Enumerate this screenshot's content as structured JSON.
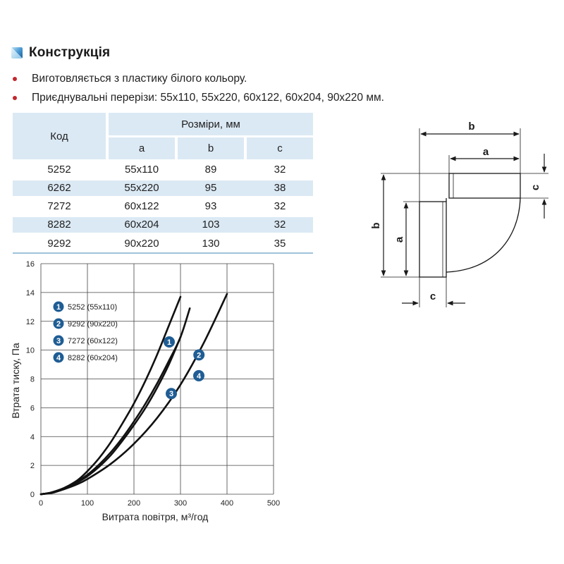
{
  "heading": {
    "title": "Конструкція"
  },
  "bullets": [
    "Виготовляється з пластику білого кольору.",
    "Приєднувальні перерізи:  55x110, 55x220, 60x122, 60x204, 90x220 мм."
  ],
  "table": {
    "code_header": "Код",
    "sizes_header": "Розміри, мм",
    "columns": [
      "a",
      "b",
      "c"
    ],
    "rows": [
      {
        "code": "5252",
        "a": "55x110",
        "b": "89",
        "c": "32"
      },
      {
        "code": "6262",
        "a": "55x220",
        "b": "95",
        "c": "38"
      },
      {
        "code": "7272",
        "a": "60x122",
        "b": "93",
        "c": "32"
      },
      {
        "code": "8282",
        "a": "60x204",
        "b": "103",
        "c": "32"
      },
      {
        "code": "9292",
        "a": "90x220",
        "b": "130",
        "c": "35"
      }
    ]
  },
  "colors": {
    "accent": "#1f5d94",
    "table_shade": "#dbe9f4",
    "bullet": "#c0282e",
    "curve": "#111111"
  },
  "chart_data": {
    "type": "line",
    "xlabel": "Витрата повітря, м³/год",
    "ylabel": "Втрата тиску, Па",
    "xlim": [
      0,
      500
    ],
    "ylim": [
      0,
      16
    ],
    "xticks": [
      0,
      100,
      200,
      300,
      400,
      500
    ],
    "yticks": [
      0,
      2,
      4,
      6,
      8,
      10,
      12,
      14,
      16
    ],
    "grid": true,
    "legend_position": "top-left",
    "series": [
      {
        "name": "5252 (55x110)",
        "badge": "1",
        "x": [
          0,
          20,
          40,
          60,
          80,
          100,
          125,
          150,
          175,
          200,
          225,
          250,
          275,
          300
        ],
        "y": [
          0,
          0.1,
          0.3,
          0.6,
          1.0,
          1.6,
          2.5,
          3.6,
          4.9,
          6.3,
          7.9,
          9.7,
          11.7,
          13.7
        ]
      },
      {
        "name": "9292 (90x220)",
        "badge": "2",
        "x": [
          0,
          20,
          40,
          60,
          80,
          100,
          125,
          150,
          175,
          200,
          225,
          250,
          275,
          300,
          320
        ],
        "y": [
          0,
          0.1,
          0.3,
          0.55,
          0.9,
          1.35,
          2.05,
          2.9,
          3.9,
          5.05,
          6.3,
          7.7,
          9.25,
          10.9,
          12.9
        ]
      },
      {
        "name": "7272 (60x122)",
        "badge": "3",
        "x": [
          0,
          20,
          40,
          60,
          80,
          100,
          125,
          150,
          175,
          200,
          225,
          250,
          275,
          300
        ],
        "y": [
          0,
          0.1,
          0.3,
          0.5,
          0.85,
          1.25,
          1.9,
          2.7,
          3.7,
          4.8,
          6.0,
          7.4,
          9.0,
          10.9
        ]
      },
      {
        "name": "8282 (60x204)",
        "badge": "4",
        "x": [
          0,
          25,
          50,
          75,
          100,
          150,
          200,
          250,
          300,
          350,
          400
        ],
        "y": [
          0,
          0.1,
          0.35,
          0.65,
          1.05,
          2.1,
          3.5,
          5.3,
          7.6,
          10.5,
          13.9
        ]
      }
    ]
  },
  "diagram": {
    "labels": {
      "a": "a",
      "b": "b",
      "c": "c"
    }
  }
}
